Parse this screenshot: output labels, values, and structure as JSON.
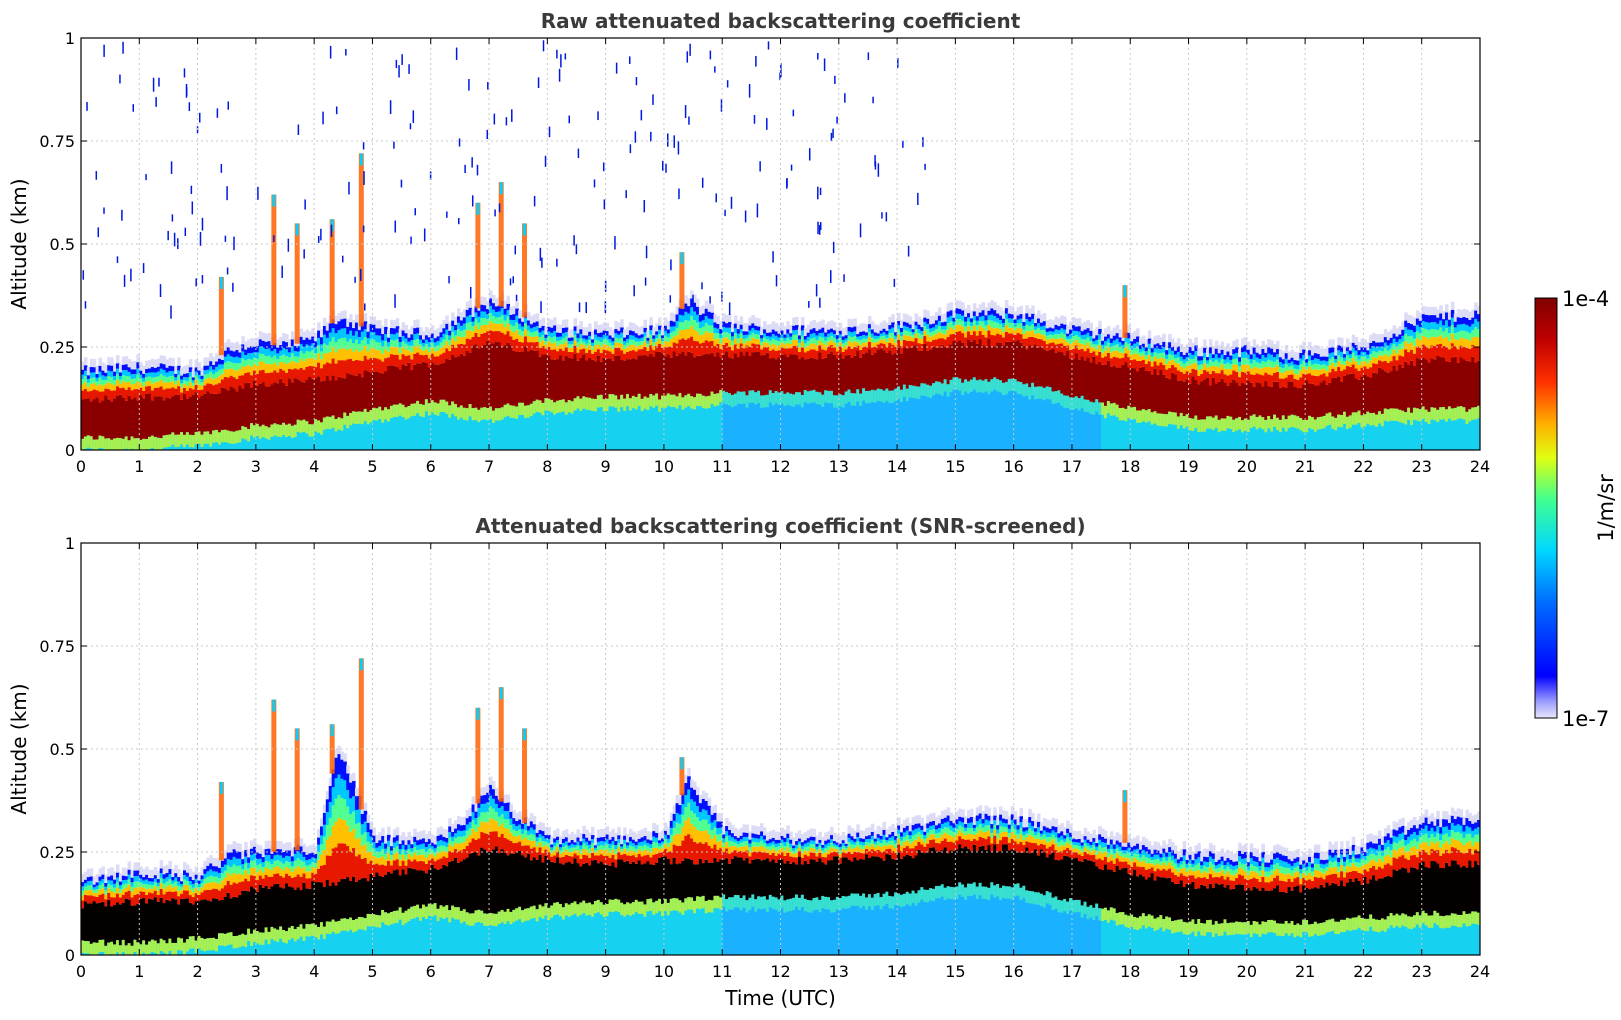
{
  "chart_data": [
    {
      "type": "heatmap",
      "title": "Raw attenuated backscattering coefficient",
      "xlabel": "",
      "ylabel": "Altitude (km)",
      "xlim": [
        0,
        24
      ],
      "ylim": [
        0,
        1
      ],
      "xticks": [
        "0",
        "1",
        "2",
        "3",
        "4",
        "5",
        "6",
        "7",
        "8",
        "9",
        "10",
        "11",
        "12",
        "13",
        "14",
        "15",
        "16",
        "17",
        "18",
        "19",
        "20",
        "21",
        "22",
        "23",
        "24"
      ],
      "yticks": [
        "0",
        "0.25",
        "0.5",
        "0.75",
        "1"
      ],
      "grid": true,
      "screened": false,
      "layer_top_km": [
        [
          0,
          0.19
        ],
        [
          1,
          0.2
        ],
        [
          2,
          0.19
        ],
        [
          2.5,
          0.24
        ],
        [
          3,
          0.26
        ],
        [
          3.5,
          0.25
        ],
        [
          4,
          0.27
        ],
        [
          4.4,
          0.32
        ],
        [
          5,
          0.29
        ],
        [
          6,
          0.28
        ],
        [
          6.5,
          0.32
        ],
        [
          7,
          0.36
        ],
        [
          7.5,
          0.33
        ],
        [
          8,
          0.29
        ],
        [
          9,
          0.28
        ],
        [
          10,
          0.29
        ],
        [
          10.4,
          0.36
        ],
        [
          11,
          0.3
        ],
        [
          12,
          0.29
        ],
        [
          13,
          0.29
        ],
        [
          14,
          0.3
        ],
        [
          15,
          0.33
        ],
        [
          16,
          0.33
        ],
        [
          17,
          0.29
        ],
        [
          18,
          0.27
        ],
        [
          19,
          0.24
        ],
        [
          20,
          0.24
        ],
        [
          21,
          0.23
        ],
        [
          22,
          0.25
        ],
        [
          23,
          0.32
        ],
        [
          24,
          0.33
        ]
      ],
      "core_km": [
        [
          0,
          [
            0.03,
            0.12
          ]
        ],
        [
          1,
          [
            0.03,
            0.13
          ]
        ],
        [
          2,
          [
            0.04,
            0.13
          ]
        ],
        [
          3,
          [
            0.06,
            0.16
          ]
        ],
        [
          4,
          [
            0.07,
            0.17
          ]
        ],
        [
          5,
          [
            0.1,
            0.19
          ]
        ],
        [
          6,
          [
            0.12,
            0.21
          ]
        ],
        [
          7,
          [
            0.1,
            0.26
          ]
        ],
        [
          8,
          [
            0.12,
            0.23
          ]
        ],
        [
          9,
          [
            0.13,
            0.22
          ]
        ],
        [
          10,
          [
            0.13,
            0.23
          ]
        ],
        [
          11,
          [
            0.14,
            0.23
          ]
        ],
        [
          12,
          [
            0.14,
            0.23
          ]
        ],
        [
          13,
          [
            0.14,
            0.23
          ]
        ],
        [
          14,
          [
            0.15,
            0.24
          ]
        ],
        [
          15,
          [
            0.17,
            0.26
          ]
        ],
        [
          16,
          [
            0.17,
            0.26
          ]
        ],
        [
          17,
          [
            0.13,
            0.23
          ]
        ],
        [
          18,
          [
            0.1,
            0.2
          ]
        ],
        [
          19,
          [
            0.08,
            0.17
          ]
        ],
        [
          20,
          [
            0.08,
            0.16
          ]
        ],
        [
          21,
          [
            0.08,
            0.16
          ]
        ],
        [
          22,
          [
            0.09,
            0.18
          ]
        ],
        [
          23,
          [
            0.1,
            0.22
          ]
        ],
        [
          24,
          [
            0.1,
            0.22
          ]
        ]
      ]
    },
    {
      "type": "heatmap",
      "title": "Attenuated backscattering coefficient (SNR-screened)",
      "xlabel": "Time (UTC)",
      "ylabel": "Altitude (km)",
      "xlim": [
        0,
        24
      ],
      "ylim": [
        0,
        1
      ],
      "xticks": [
        "0",
        "1",
        "2",
        "3",
        "4",
        "5",
        "6",
        "7",
        "8",
        "9",
        "10",
        "11",
        "12",
        "13",
        "14",
        "15",
        "16",
        "17",
        "18",
        "19",
        "20",
        "21",
        "22",
        "23",
        "24"
      ],
      "yticks": [
        "0",
        "0.25",
        "0.5",
        "0.75",
        "1"
      ],
      "grid": true,
      "screened": true,
      "layer_top_km": [
        [
          0,
          0.18
        ],
        [
          1,
          0.2
        ],
        [
          2,
          0.19
        ],
        [
          2.5,
          0.24
        ],
        [
          3,
          0.25
        ],
        [
          3.5,
          0.25
        ],
        [
          4,
          0.26
        ],
        [
          4.4,
          0.5
        ],
        [
          5,
          0.28
        ],
        [
          6,
          0.27
        ],
        [
          6.5,
          0.32
        ],
        [
          7,
          0.4
        ],
        [
          7.5,
          0.33
        ],
        [
          8,
          0.28
        ],
        [
          9,
          0.28
        ],
        [
          10,
          0.29
        ],
        [
          10.4,
          0.42
        ],
        [
          11,
          0.3
        ],
        [
          12,
          0.28
        ],
        [
          13,
          0.28
        ],
        [
          14,
          0.3
        ],
        [
          15,
          0.33
        ],
        [
          16,
          0.33
        ],
        [
          17,
          0.29
        ],
        [
          18,
          0.27
        ],
        [
          19,
          0.24
        ],
        [
          20,
          0.24
        ],
        [
          21,
          0.23
        ],
        [
          22,
          0.26
        ],
        [
          23,
          0.32
        ],
        [
          24,
          0.33
        ]
      ],
      "core_km": [
        [
          0,
          [
            0.03,
            0.12
          ]
        ],
        [
          1,
          [
            0.03,
            0.13
          ]
        ],
        [
          2,
          [
            0.04,
            0.13
          ]
        ],
        [
          3,
          [
            0.06,
            0.16
          ]
        ],
        [
          4,
          [
            0.07,
            0.17
          ]
        ],
        [
          5,
          [
            0.1,
            0.19
          ]
        ],
        [
          6,
          [
            0.12,
            0.21
          ]
        ],
        [
          7,
          [
            0.1,
            0.26
          ]
        ],
        [
          8,
          [
            0.12,
            0.23
          ]
        ],
        [
          9,
          [
            0.13,
            0.22
          ]
        ],
        [
          10,
          [
            0.13,
            0.23
          ]
        ],
        [
          11,
          [
            0.14,
            0.23
          ]
        ],
        [
          12,
          [
            0.14,
            0.23
          ]
        ],
        [
          13,
          [
            0.14,
            0.23
          ]
        ],
        [
          14,
          [
            0.15,
            0.24
          ]
        ],
        [
          15,
          [
            0.17,
            0.26
          ]
        ],
        [
          16,
          [
            0.17,
            0.26
          ]
        ],
        [
          17,
          [
            0.13,
            0.23
          ]
        ],
        [
          18,
          [
            0.1,
            0.2
          ]
        ],
        [
          19,
          [
            0.08,
            0.17
          ]
        ],
        [
          20,
          [
            0.08,
            0.16
          ]
        ],
        [
          21,
          [
            0.08,
            0.16
          ]
        ],
        [
          22,
          [
            0.09,
            0.18
          ]
        ],
        [
          23,
          [
            0.1,
            0.22
          ]
        ],
        [
          24,
          [
            0.1,
            0.22
          ]
        ]
      ]
    }
  ],
  "colorbar": {
    "max_label": "1e-4",
    "min_label": "1e-7",
    "unit_label": "1/m/sr",
    "scale": "log",
    "colormap": [
      "#e6e6fa",
      "#0000ff",
      "#00b4ff",
      "#00ffe0",
      "#a0ff40",
      "#ffff00",
      "#ff9000",
      "#ff2000",
      "#a00000",
      "#800000"
    ]
  },
  "colors": {
    "saturated_screened": "#000000",
    "grid": "#c8c8c8",
    "title": "#3a3a3a"
  }
}
